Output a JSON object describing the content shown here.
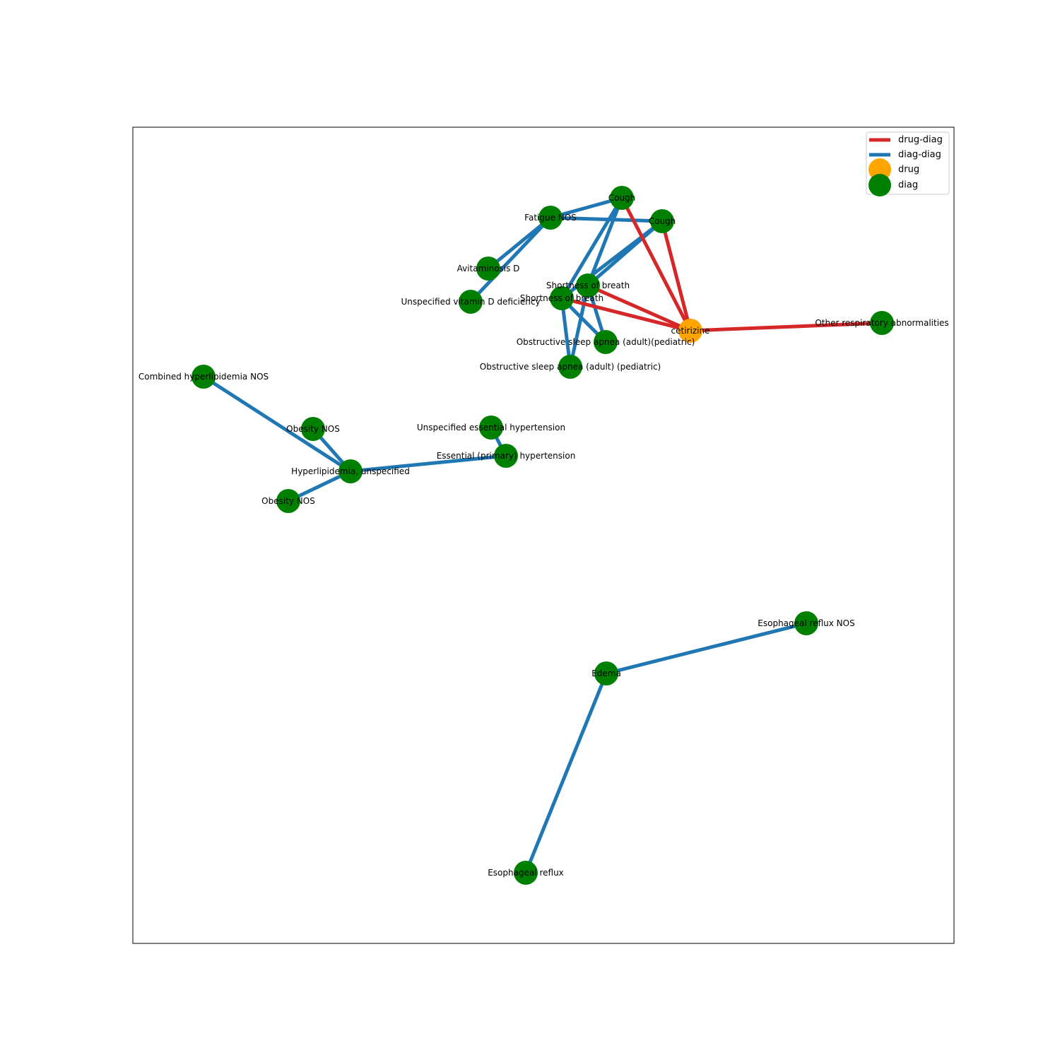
{
  "colors": {
    "drug_diag_edge": "#d62728",
    "diag_diag_edge": "#1f77b4",
    "drug_node": "#ffa500",
    "diag_node": "#008000",
    "frame": "#000000"
  },
  "legend": {
    "items": [
      {
        "label": "drug-diag",
        "kind": "line",
        "color": "#d62728"
      },
      {
        "label": "diag-diag",
        "kind": "line",
        "color": "#1f77b4"
      },
      {
        "label": "drug",
        "kind": "marker",
        "color": "#ffa500"
      },
      {
        "label": "diag",
        "kind": "marker",
        "color": "#008000"
      }
    ]
  },
  "graph": {
    "nodes": [
      {
        "id": "cough1",
        "label": "Cough",
        "type": "diag"
      },
      {
        "id": "cough2",
        "label": "Cough",
        "type": "diag"
      },
      {
        "id": "fatigue",
        "label": "Fatigue NOS",
        "type": "diag"
      },
      {
        "id": "avitaminosis",
        "label": "Avitaminosis D",
        "type": "diag"
      },
      {
        "id": "vitd",
        "label": "Unspecified vitamin D deficiency",
        "type": "diag"
      },
      {
        "id": "sob1",
        "label": "Shortness of breath",
        "type": "diag"
      },
      {
        "id": "sob2",
        "label": "Shortness of breath",
        "type": "diag"
      },
      {
        "id": "osa1",
        "label": "Obstructive sleep apnea (adult)(pediatric)",
        "type": "diag"
      },
      {
        "id": "osa2",
        "label": "Obstructive sleep apnea (adult) (pediatric)",
        "type": "diag"
      },
      {
        "id": "cetirizine",
        "label": "cetirizine",
        "type": "drug"
      },
      {
        "id": "otherresp",
        "label": "Other respiratory abnormalities",
        "type": "diag"
      },
      {
        "id": "combhyper",
        "label": "Combined hyperlipidemia NOS",
        "type": "diag"
      },
      {
        "id": "obesity1",
        "label": "Obesity NOS",
        "type": "diag"
      },
      {
        "id": "obesity2",
        "label": "Obesity NOS",
        "type": "diag"
      },
      {
        "id": "hyperlip",
        "label": "Hyperlipidemia, unspecified",
        "type": "diag"
      },
      {
        "id": "unsphtn",
        "label": "Unspecified essential hypertension",
        "type": "diag"
      },
      {
        "id": "esshtn",
        "label": "Essential (primary) hypertension",
        "type": "diag"
      },
      {
        "id": "edema",
        "label": "Edema",
        "type": "diag"
      },
      {
        "id": "esorefluxnos",
        "label": "Esophageal reflux NOS",
        "type": "diag"
      },
      {
        "id": "esoreflux",
        "label": "Esophageal reflux",
        "type": "diag"
      }
    ],
    "edges": [
      {
        "source": "cough1",
        "target": "fatigue",
        "type": "diag-diag"
      },
      {
        "source": "fatigue",
        "target": "cough2",
        "type": "diag-diag"
      },
      {
        "source": "fatigue",
        "target": "avitaminosis",
        "type": "diag-diag"
      },
      {
        "source": "fatigue",
        "target": "vitd",
        "type": "diag-diag"
      },
      {
        "source": "cough1",
        "target": "sob1",
        "type": "diag-diag"
      },
      {
        "source": "cough1",
        "target": "sob2",
        "type": "diag-diag"
      },
      {
        "source": "cough2",
        "target": "sob1",
        "type": "diag-diag"
      },
      {
        "source": "cough2",
        "target": "sob2",
        "type": "diag-diag"
      },
      {
        "source": "sob1",
        "target": "osa1",
        "type": "diag-diag"
      },
      {
        "source": "sob1",
        "target": "osa2",
        "type": "diag-diag"
      },
      {
        "source": "sob2",
        "target": "osa1",
        "type": "diag-diag"
      },
      {
        "source": "sob2",
        "target": "osa2",
        "type": "diag-diag"
      },
      {
        "source": "cough1",
        "target": "cetirizine",
        "type": "drug-diag"
      },
      {
        "source": "cough2",
        "target": "cetirizine",
        "type": "drug-diag"
      },
      {
        "source": "sob1",
        "target": "cetirizine",
        "type": "drug-diag"
      },
      {
        "source": "sob2",
        "target": "cetirizine",
        "type": "drug-diag"
      },
      {
        "source": "cetirizine",
        "target": "otherresp",
        "type": "drug-diag"
      },
      {
        "source": "combhyper",
        "target": "hyperlip",
        "type": "diag-diag"
      },
      {
        "source": "obesity1",
        "target": "hyperlip",
        "type": "diag-diag"
      },
      {
        "source": "obesity2",
        "target": "hyperlip",
        "type": "diag-diag"
      },
      {
        "source": "hyperlip",
        "target": "esshtn",
        "type": "diag-diag"
      },
      {
        "source": "unsphtn",
        "target": "esshtn",
        "type": "diag-diag"
      },
      {
        "source": "edema",
        "target": "esorefluxnos",
        "type": "diag-diag"
      },
      {
        "source": "edema",
        "target": "esoreflux",
        "type": "diag-diag"
      }
    ]
  }
}
